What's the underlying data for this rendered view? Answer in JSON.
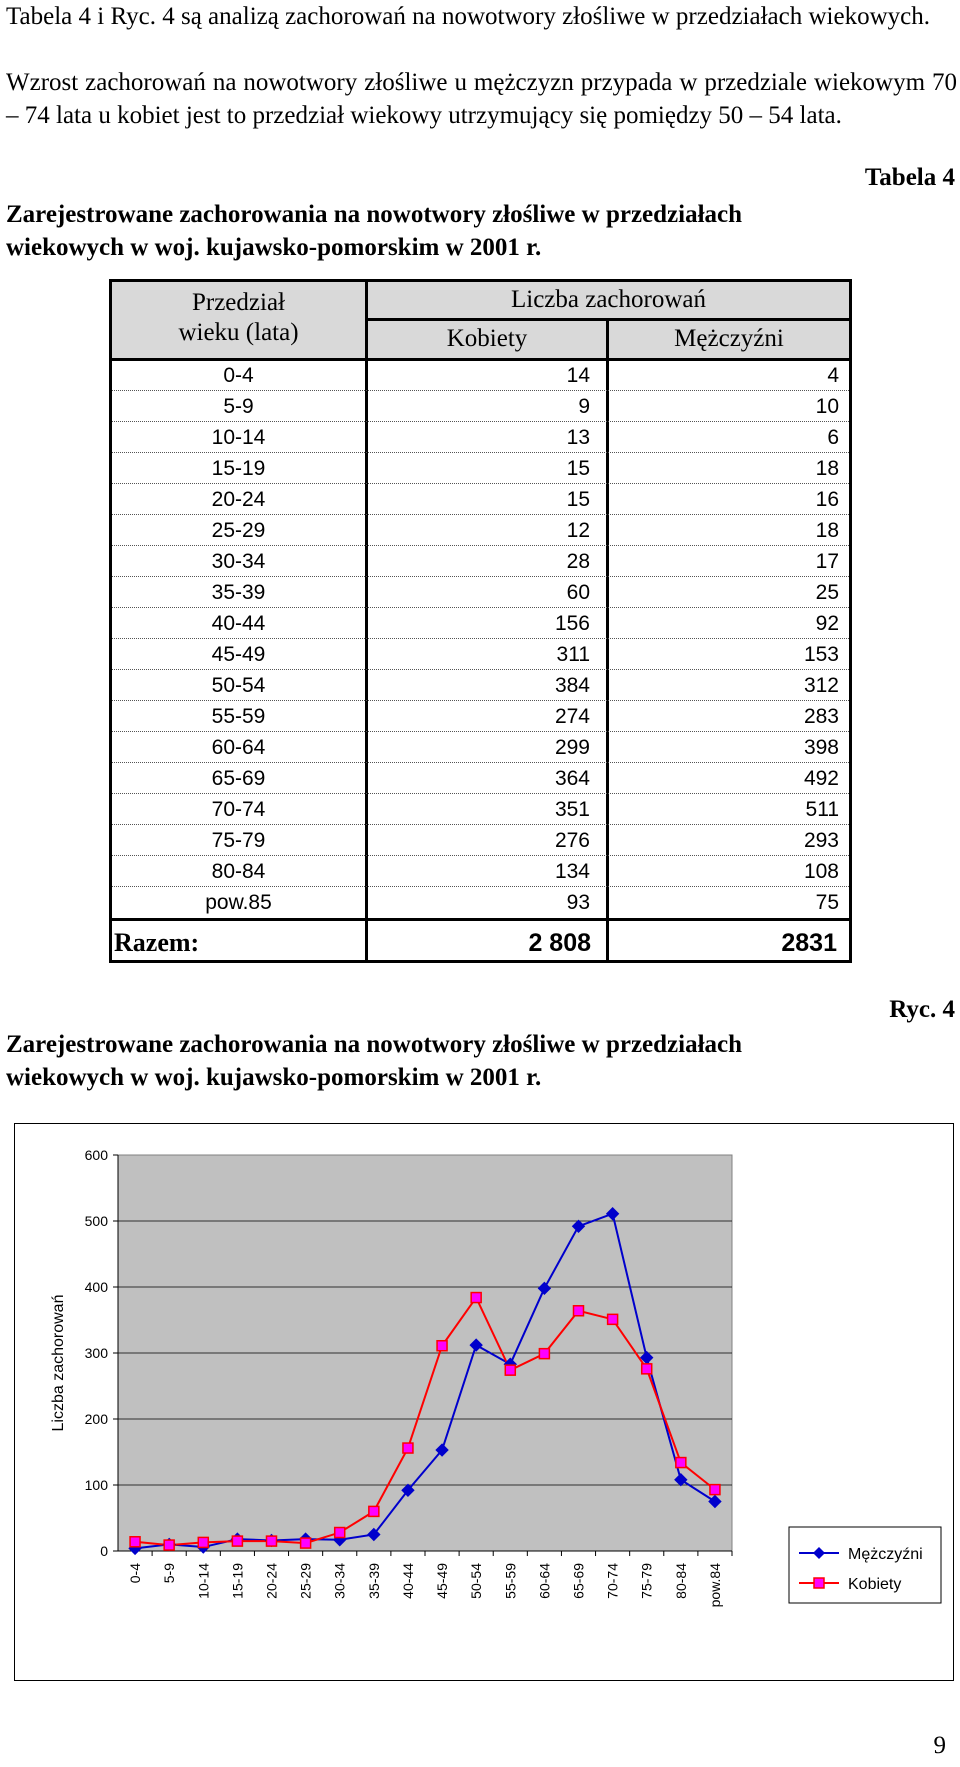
{
  "intro": {
    "p1": "Tabela 4 i Ryc. 4 są analizą zachorowań na nowotwory złośliwe w przedziałach wiekowych.",
    "p2": "Wzrost zachorowań na nowotwory złośliwe u mężczyzn przypada w przedziale wiekowym 70 – 74 lata u kobiet jest to przedział wiekowy utrzymujący się pomiędzy 50 – 54 lata."
  },
  "table": {
    "number_label": "Tabela 4",
    "caption_line1": "Zarejestrowane zachorowania na nowotwory złośliwe w przedziałach",
    "caption_line2": "wiekowych w woj. kujawsko-pomorskim w 2001 r.",
    "header_age_line1": "Przedział",
    "header_age_line2": "wieku (lata)",
    "header_group": "Liczba zachorowań",
    "header_women": "Kobiety",
    "header_men": "Mężczyźni",
    "rows": [
      {
        "age": "0-4",
        "women": "14",
        "men": "4"
      },
      {
        "age": "5-9",
        "women": "9",
        "men": "10"
      },
      {
        "age": "10-14",
        "women": "13",
        "men": "6"
      },
      {
        "age": "15-19",
        "women": "15",
        "men": "18"
      },
      {
        "age": "20-24",
        "women": "15",
        "men": "16"
      },
      {
        "age": "25-29",
        "women": "12",
        "men": "18"
      },
      {
        "age": "30-34",
        "women": "28",
        "men": "17"
      },
      {
        "age": "35-39",
        "women": "60",
        "men": "25"
      },
      {
        "age": "40-44",
        "women": "156",
        "men": "92"
      },
      {
        "age": "45-49",
        "women": "311",
        "men": "153"
      },
      {
        "age": "50-54",
        "women": "384",
        "men": "312"
      },
      {
        "age": "55-59",
        "women": "274",
        "men": "283"
      },
      {
        "age": "60-64",
        "women": "299",
        "men": "398"
      },
      {
        "age": "65-69",
        "women": "364",
        "men": "492"
      },
      {
        "age": "70-74",
        "women": "351",
        "men": "511"
      },
      {
        "age": "75-79",
        "women": "276",
        "men": "293"
      },
      {
        "age": "80-84",
        "women": "134",
        "men": "108"
      },
      {
        "age": "pow.85",
        "women": "93",
        "men": "75"
      }
    ],
    "total_label": "Razem:",
    "total_women": "2 808",
    "total_men": "2831"
  },
  "figure": {
    "number_label": "Ryc. 4",
    "caption_line1": "Zarejestrowane zachorowania na nowotwory złośliwe w przedziałach",
    "caption_line2": "wiekowych w woj. kujawsko-pomorskim w 2001 r."
  },
  "chart_data": {
    "type": "line",
    "categories": [
      "0-4",
      "5-9",
      "10-14",
      "15-19",
      "20-24",
      "25-29",
      "30-34",
      "35-39",
      "40-44",
      "45-49",
      "50-54",
      "55-59",
      "60-64",
      "65-69",
      "70-74",
      "75-79",
      "80-84",
      "pow.84"
    ],
    "series": [
      {
        "name": "Mężczyźni",
        "color": "#0000cc",
        "marker": "diamond",
        "values": [
          4,
          10,
          6,
          18,
          16,
          18,
          17,
          25,
          92,
          153,
          312,
          283,
          398,
          492,
          511,
          293,
          108,
          75
        ]
      },
      {
        "name": "Kobiety",
        "color": "#ff0000",
        "marker": "square",
        "marker_fill": "#ff00ff",
        "values": [
          14,
          9,
          13,
          15,
          15,
          12,
          28,
          60,
          156,
          311,
          384,
          274,
          299,
          364,
          351,
          276,
          134,
          93
        ]
      }
    ],
    "ylabel": "Liczba zachorowań",
    "xlabel": "",
    "ylim": [
      0,
      600
    ],
    "yticks": [
      0,
      100,
      200,
      300,
      400,
      500,
      600
    ],
    "grid": "horizontal",
    "plot_background": "#c0c0c0",
    "legend_position": "right"
  },
  "page_number": "9"
}
